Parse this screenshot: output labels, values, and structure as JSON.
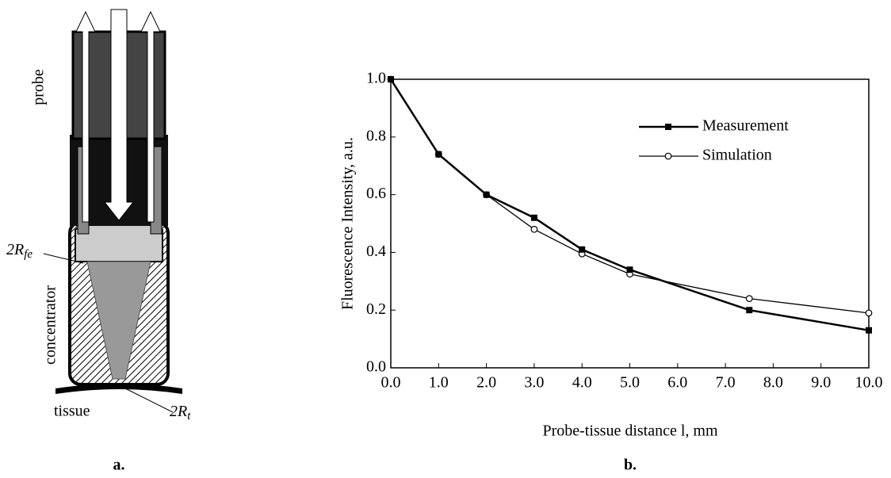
{
  "diagram": {
    "labels": {
      "probe": "probe",
      "concentrator": "concentrator",
      "tissue": "tissue",
      "fiber_end": {
        "main": "2R",
        "sub": "fe"
      },
      "tissue_spot": {
        "main": "2R",
        "sub": "t"
      }
    },
    "caption": "a."
  },
  "chart_data": {
    "type": "line",
    "caption": "b.",
    "xlabel": "Probe-tissue distance l, mm",
    "ylabel": "Fluorescence Intensity, a.u.",
    "xlim": [
      0,
      10
    ],
    "ylim": [
      0,
      1
    ],
    "xticks": [
      {
        "value": 0,
        "label": "0.0"
      },
      {
        "value": 1,
        "label": "1.0"
      },
      {
        "value": 2,
        "label": "2.0"
      },
      {
        "value": 3,
        "label": "3.0"
      },
      {
        "value": 4,
        "label": "4.0"
      },
      {
        "value": 5,
        "label": "5.0"
      },
      {
        "value": 6,
        "label": "6.0"
      },
      {
        "value": 7,
        "label": "7.0"
      },
      {
        "value": 8,
        "label": "8.0"
      },
      {
        "value": 9,
        "label": "9.0"
      },
      {
        "value": 10,
        "label": "10.0"
      }
    ],
    "yticks": [
      {
        "value": 0,
        "label": "0.0"
      },
      {
        "value": 0.2,
        "label": "0.2"
      },
      {
        "value": 0.4,
        "label": "0.4"
      },
      {
        "value": 0.6,
        "label": "0.6"
      },
      {
        "value": 0.8,
        "label": "0.8"
      },
      {
        "value": 1,
        "label": "1.0"
      }
    ],
    "legend": "upper right",
    "series": [
      {
        "name": "Measurement",
        "color": "#000000",
        "marker": "square",
        "x": [
          0,
          1,
          2,
          3,
          4,
          5,
          7.5,
          10
        ],
        "values": [
          1.0,
          0.74,
          0.6,
          0.52,
          0.41,
          0.34,
          0.2,
          0.13
        ]
      },
      {
        "name": "Simulation",
        "color": "#000000",
        "marker": "circle",
        "x": [
          0,
          1,
          2,
          3,
          4,
          5,
          7.5,
          10
        ],
        "values": [
          1.0,
          0.74,
          0.6,
          0.48,
          0.395,
          0.325,
          0.24,
          0.19
        ]
      }
    ]
  }
}
